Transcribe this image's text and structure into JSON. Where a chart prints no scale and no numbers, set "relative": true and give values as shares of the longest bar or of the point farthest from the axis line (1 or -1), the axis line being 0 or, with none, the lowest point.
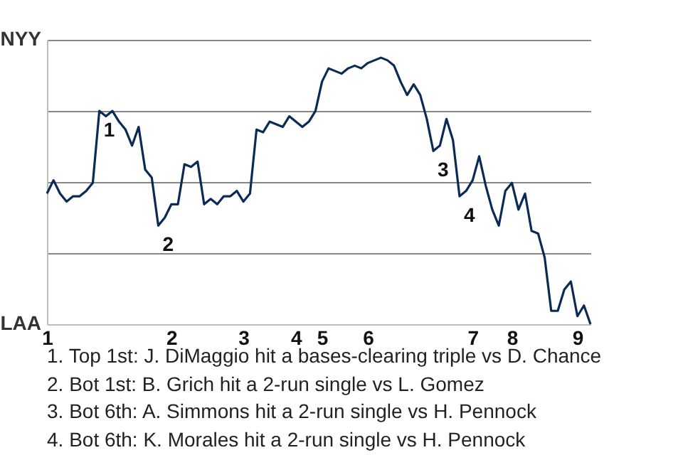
{
  "chart_data": {
    "type": "line",
    "color": "#0b2a55",
    "relative": true,
    "grid": "y",
    "categories": [
      "1",
      null,
      null,
      null,
      null,
      null,
      null,
      null,
      null,
      null,
      null,
      null,
      null,
      null,
      null,
      null,
      null,
      null,
      null,
      "2",
      null,
      null,
      null,
      null,
      null,
      null,
      null,
      null,
      null,
      null,
      "3",
      null,
      null,
      null,
      null,
      null,
      null,
      null,
      "4",
      null,
      null,
      null,
      "5",
      null,
      null,
      null,
      null,
      null,
      null,
      "6",
      null,
      null,
      null,
      null,
      null,
      null,
      null,
      null,
      null,
      null,
      null,
      null,
      null,
      null,
      null,
      "7",
      null,
      null,
      null,
      null,
      null,
      "8",
      null,
      null,
      null,
      null,
      null,
      null,
      null,
      null,
      null,
      "9",
      null,
      null
    ],
    "values": [
      0.49,
      0.54,
      0.49,
      0.46,
      0.48,
      0.48,
      0.5,
      0.53,
      0.8,
      0.78,
      0.8,
      0.76,
      0.73,
      0.67,
      0.74,
      0.58,
      0.55,
      0.37,
      0.4,
      0.45,
      0.45,
      0.6,
      0.59,
      0.61,
      0.45,
      0.47,
      0.45,
      0.48,
      0.48,
      0.5,
      0.46,
      0.49,
      0.73,
      0.72,
      0.76,
      0.75,
      0.74,
      0.78,
      0.76,
      0.74,
      0.76,
      0.8,
      0.91,
      0.96,
      0.95,
      0.94,
      0.96,
      0.97,
      0.96,
      0.98,
      0.99,
      1,
      0.99,
      0.97,
      0.91,
      0.86,
      0.9,
      0.86,
      0.77,
      0.65,
      0.67,
      0.77,
      0.69,
      0.48,
      0.5,
      0.54,
      0.63,
      0.52,
      0.43,
      0.37,
      0.5,
      0.53,
      0.43,
      0.49,
      0.35,
      0.34,
      0.25,
      0.05,
      0.05,
      0.13,
      0.16,
      0.03,
      0.07,
      0
    ],
    "annotations": [
      "NYY",
      "LAA",
      {
        "text": "1",
        "y": 0.8
      },
      {
        "text": "2",
        "y": 0.37
      },
      {
        "text": "3",
        "y": 0.65
      },
      {
        "text": "4",
        "y": 0.48
      },
      "1. Top 1st: J. DiMaggio hit a bases-clearing triple vs D. Chance",
      "2. Bot 1st: B. Grich hit a 2-run single vs L. Gomez",
      "3. Bot 6th: A. Simmons hit a 2-run single vs H. Pennock",
      "4. Bot 6th: K. Morales hit a 2-run single vs H. Pennock"
    ]
  }
}
